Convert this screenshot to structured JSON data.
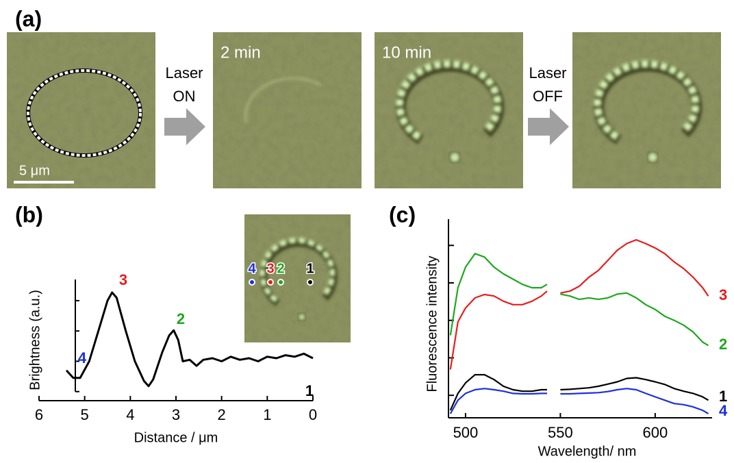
{
  "figure": {
    "panel_labels": [
      "(a)",
      "(b)",
      "(c)"
    ],
    "image_times": [
      "2 min",
      "10 min"
    ],
    "arrows": [
      [
        "Laser",
        "ON"
      ],
      [
        "Laser",
        "OFF"
      ]
    ],
    "scale_bar": "5 μm",
    "inset_labels": [
      {
        "text": "4",
        "color": "#1c2fe0"
      },
      {
        "text": "3",
        "color": "#e81c1c"
      },
      {
        "text": "2",
        "color": "#1ca81c"
      },
      {
        "text": "1",
        "color": "#000000"
      }
    ]
  },
  "chart_data": [
    {
      "type": "line",
      "y_label": "Brightness (a.u.)",
      "x_label": "Distance / μm",
      "xlim": [
        6,
        0
      ],
      "xticks": [
        6,
        5,
        4,
        3,
        2,
        1,
        0
      ],
      "ylim": [
        -0.3,
        3.7
      ],
      "yticks": [
        0,
        1,
        2,
        3
      ],
      "x": [
        5.4,
        5.25,
        5.1,
        4.9,
        4.7,
        4.5,
        4.4,
        4.3,
        4.1,
        3.9,
        3.7,
        3.6,
        3.5,
        3.3,
        3.15,
        3.05,
        2.95,
        2.85,
        2.7,
        2.55,
        2.4,
        2.2,
        2.0,
        1.8,
        1.6,
        1.4,
        1.2,
        1.0,
        0.8,
        0.6,
        0.4,
        0.2,
        0
      ],
      "values": [
        0.7,
        0.45,
        0.45,
        1.0,
        2.0,
        3.0,
        3.27,
        3.1,
        2.0,
        1.0,
        0.35,
        0.18,
        0.4,
        1.3,
        1.85,
        2.02,
        1.7,
        1.0,
        1.05,
        0.85,
        1.05,
        1.1,
        1.0,
        1.15,
        1.05,
        1.1,
        1.0,
        1.15,
        1.1,
        1.2,
        1.15,
        1.25,
        1.1
      ],
      "color": "#000000",
      "annotations": [
        {
          "text": "3",
          "color": "#e81c1c"
        },
        {
          "text": "2",
          "color": "#1ca81c"
        },
        {
          "text": "4",
          "color": "#1c2fe0"
        },
        {
          "text": "1",
          "color": "#000000"
        }
      ]
    },
    {
      "type": "line",
      "y_label": "Fluorescence intensity",
      "x_label": "Wavelength/ nm",
      "xlim": [
        491,
        630
      ],
      "xticks": [
        500,
        550,
        600
      ],
      "ylim": [
        0.4,
        5.7
      ],
      "yticks": [
        1,
        2,
        3,
        4,
        5
      ],
      "x": [
        492,
        496,
        500,
        505,
        510,
        515,
        520,
        525,
        530,
        535,
        540,
        543,
        546,
        550,
        555,
        560,
        565,
        570,
        575,
        580,
        585,
        590,
        595,
        600,
        605,
        610,
        615,
        620,
        625,
        628
      ],
      "series": [
        {
          "name": "3",
          "color": "#e81c1c",
          "values": [
            1.69,
            2.96,
            3.33,
            3.6,
            3.69,
            3.65,
            3.51,
            3.42,
            3.42,
            3.51,
            3.65,
            3.78,
            null,
            3.73,
            3.78,
            3.91,
            4.15,
            4.33,
            4.6,
            4.87,
            5.05,
            5.15,
            5.05,
            4.93,
            4.78,
            4.56,
            4.38,
            4.15,
            3.87,
            3.65
          ]
        },
        {
          "name": "2",
          "color": "#1ca81c",
          "values": [
            2.6,
            3.87,
            4.42,
            4.78,
            4.69,
            4.42,
            4.24,
            4.1,
            3.96,
            3.87,
            3.87,
            3.96,
            null,
            3.7,
            3.65,
            3.56,
            3.6,
            3.56,
            3.6,
            3.7,
            3.73,
            3.6,
            3.42,
            3.29,
            3.11,
            3.0,
            2.87,
            2.69,
            2.42,
            2.33
          ]
        },
        {
          "name": "1",
          "color": "#000000",
          "values": [
            0.6,
            1.05,
            1.33,
            1.55,
            1.55,
            1.42,
            1.24,
            1.15,
            1.11,
            1.11,
            1.15,
            1.15,
            null,
            1.15,
            1.16,
            1.18,
            1.2,
            1.24,
            1.3,
            1.36,
            1.45,
            1.47,
            1.42,
            1.36,
            1.29,
            1.18,
            1.11,
            1.05,
            0.96,
            0.87
          ]
        },
        {
          "name": "4",
          "color": "#1c2fe0",
          "values": [
            0.51,
            0.87,
            1.05,
            1.15,
            1.18,
            1.15,
            1.11,
            1.05,
            1.04,
            1.04,
            1.05,
            1.05,
            null,
            1.04,
            1.04,
            1.05,
            1.06,
            1.07,
            1.1,
            1.15,
            1.18,
            1.15,
            1.05,
            0.96,
            0.87,
            0.78,
            0.75,
            0.69,
            0.6,
            0.51
          ]
        }
      ]
    }
  ]
}
